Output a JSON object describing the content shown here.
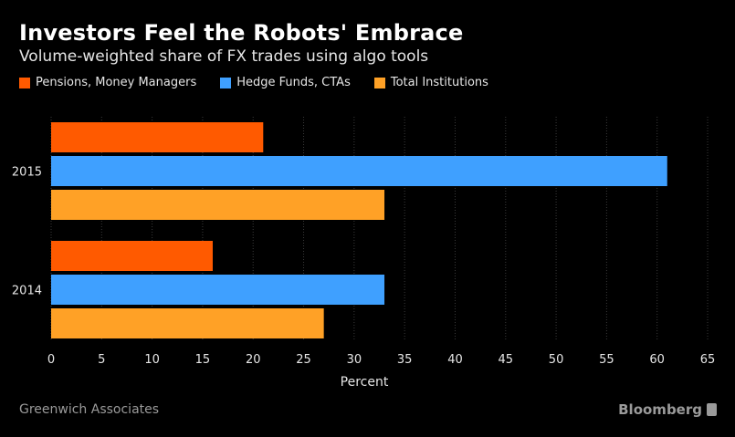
{
  "header": {
    "title": "Investors Feel the Robots' Embrace",
    "subtitle": "Volume-weighted share of FX trades using algo tools"
  },
  "footer": {
    "source": "Greenwich Associates",
    "brand": "Bloomberg"
  },
  "chart_data": {
    "type": "bar",
    "orientation": "horizontal",
    "title": "Investors Feel the Robots' Embrace",
    "subtitle": "Volume-weighted share of FX trades using algo tools",
    "xlabel": "Percent",
    "ylabel": "",
    "categories": [
      "2015",
      "2014"
    ],
    "series": [
      {
        "name": "Pensions, Money Managers",
        "color": "#ff5a00",
        "values": [
          21,
          16
        ]
      },
      {
        "name": "Hedge Funds, CTAs",
        "color": "#3fa0ff",
        "values": [
          61,
          33
        ]
      },
      {
        "name": "Total Institutions",
        "color": "#ffa126",
        "values": [
          33,
          27
        ]
      }
    ],
    "xlim": [
      0,
      65
    ],
    "xticks": [
      0,
      5,
      10,
      15,
      20,
      25,
      30,
      35,
      40,
      45,
      50,
      55,
      60,
      65
    ],
    "grid": true,
    "legend_position": "top-left"
  }
}
